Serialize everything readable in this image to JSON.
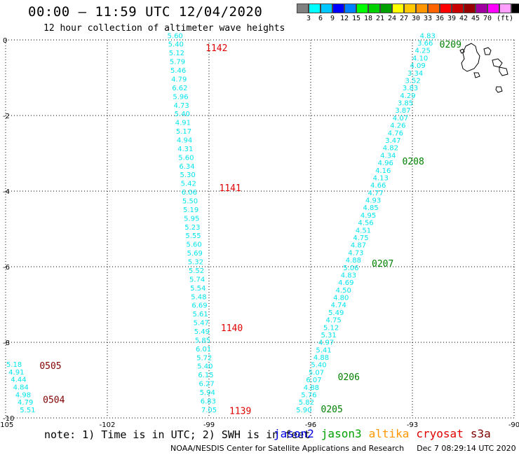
{
  "header": {
    "title": "00:00 – 11:59 UTC 12/04/2020",
    "subtitle": "12 hour collection of altimeter wave heights"
  },
  "colorbar": {
    "colors": [
      "#808080",
      "#00ffff",
      "#00c8ff",
      "#0000ff",
      "#0080ff",
      "#00ff00",
      "#00d000",
      "#00a000",
      "#ffff00",
      "#ffc800",
      "#ff9600",
      "#ff6400",
      "#ff0000",
      "#c80000",
      "#960000",
      "#a000a0",
      "#ff00ff",
      "#ffa0ff",
      "#000000"
    ],
    "labels": [
      "3",
      "6",
      "9",
      "12",
      "15",
      "18",
      "21",
      "24",
      "27",
      "30",
      "33",
      "36",
      "39",
      "42",
      "45",
      "70",
      "(ft)"
    ]
  },
  "axes": {
    "x_ticks": [
      {
        "lon": -105,
        "label": "-105"
      },
      {
        "lon": -102,
        "label": "-102"
      },
      {
        "lon": -99,
        "label": "-99"
      },
      {
        "lon": -96,
        "label": "-96"
      },
      {
        "lon": -93,
        "label": "-93"
      },
      {
        "lon": -90,
        "label": "-90"
      }
    ],
    "y_ticks": [
      {
        "lat": 0,
        "label": "0"
      },
      {
        "lat": -2,
        "label": "-2"
      },
      {
        "lat": -4,
        "label": "-4"
      },
      {
        "lat": -6,
        "label": "-6"
      },
      {
        "lat": -8,
        "label": "-8"
      },
      {
        "lat": -10,
        "label": "-10"
      }
    ],
    "lon_range": [
      -105,
      -90
    ],
    "lat_range": [
      -10,
      0
    ]
  },
  "tracks": [
    {
      "name": "cryosat-left",
      "color": "#00e5ee",
      "values": [
        "5.60",
        "5.40",
        "5.12",
        "5.79",
        "5.46",
        "4.79",
        "6.62",
        "5.96",
        "4.73",
        "5.40",
        "4.91",
        "5.17",
        "4.94",
        "4.31",
        "5.60",
        "6.34",
        "5.30",
        "5.42",
        "6.06",
        "5.50",
        "5.19",
        "5.95",
        "5.23",
        "5.55",
        "5.60",
        "5.69",
        "5.32",
        "5.52",
        "5.74",
        "5.54",
        "5.48",
        "6.69",
        "5.61",
        "5.47",
        "5.49",
        "5.85",
        "6.01",
        "5.72",
        "5.40",
        "6.15",
        "6.27",
        "5.94",
        "6.83",
        "7.05"
      ],
      "start": [
        -100.0,
        0.05
      ],
      "end": [
        -99.0,
        -9.85
      ]
    },
    {
      "name": "jason3-right",
      "color": "#00e5ee",
      "values": [
        "4.83",
        "3.66",
        "4.25",
        "4.10",
        "4.09",
        "3.34",
        "3.52",
        "3.83",
        "4.29",
        "3.85",
        "3.87",
        "4.07",
        "4.26",
        "4.76",
        "3.47",
        "4.82",
        "4.34",
        "4.96",
        "4.16",
        "4.13",
        "4.66",
        "4.77",
        "4.93",
        "4.85",
        "4.95",
        "4.56",
        "4.51",
        "4.75",
        "4.87",
        "4.73",
        "4.88",
        "5.06",
        "4.83",
        "4.69",
        "4.50",
        "4.80",
        "4.74",
        "5.49",
        "4.75",
        "5.12",
        "5.31",
        "4.97",
        "5.41",
        "4.88",
        "5.40",
        "5.07",
        "6.07",
        "4.88",
        "5.76",
        "5.82",
        "5.90"
      ],
      "start": [
        -92.55,
        0.05
      ],
      "end": [
        -96.2,
        -9.85
      ]
    },
    {
      "name": "cryosat-corner",
      "color": "#00e5ee",
      "values": [
        "5.18",
        "4.91",
        "4.44",
        "4.84",
        "4.98",
        "4.79",
        "5.51"
      ],
      "start": [
        -104.75,
        -8.65
      ],
      "end": [
        -104.35,
        -9.85
      ]
    }
  ],
  "labels": [
    {
      "text": "1142",
      "lon": -99.1,
      "lat": -0.3,
      "color": "#e00000"
    },
    {
      "text": "1141",
      "lon": -98.7,
      "lat": -4.0,
      "color": "#e00000"
    },
    {
      "text": "1140",
      "lon": -98.65,
      "lat": -7.7,
      "color": "#e00000"
    },
    {
      "text": "1139",
      "lon": -98.4,
      "lat": -9.9,
      "color": "#e00000"
    },
    {
      "text": "0209",
      "lon": -92.2,
      "lat": -0.2,
      "color": "#008000"
    },
    {
      "text": "0208",
      "lon": -93.3,
      "lat": -3.3,
      "color": "#008000"
    },
    {
      "text": "0207",
      "lon": -94.2,
      "lat": -6.0,
      "color": "#008000"
    },
    {
      "text": "0206",
      "lon": -95.2,
      "lat": -9.0,
      "color": "#008000"
    },
    {
      "text": "0205",
      "lon": -95.7,
      "lat": -9.85,
      "color": "#008000"
    },
    {
      "text": "0505",
      "lon": -104.0,
      "lat": -8.7,
      "color": "#800000"
    },
    {
      "text": "0504",
      "lon": -103.9,
      "lat": -9.6,
      "color": "#800000"
    }
  ],
  "note": "note: 1) Time is in UTC; 2) SWH is in feet",
  "legend": [
    {
      "name": "jason2",
      "color": "#0000e0"
    },
    {
      "name": "jason3",
      "color": "#00a000"
    },
    {
      "name": "altika",
      "color": "#ff9600"
    },
    {
      "name": "cryosat",
      "color": "#e00000"
    },
    {
      "name": "s3a",
      "color": "#800000"
    }
  ],
  "credit": "NOAA/NESDIS Center for Satellite Applications and Research",
  "credit_date": "Dec  7 08:29:14 UTC 2020"
}
